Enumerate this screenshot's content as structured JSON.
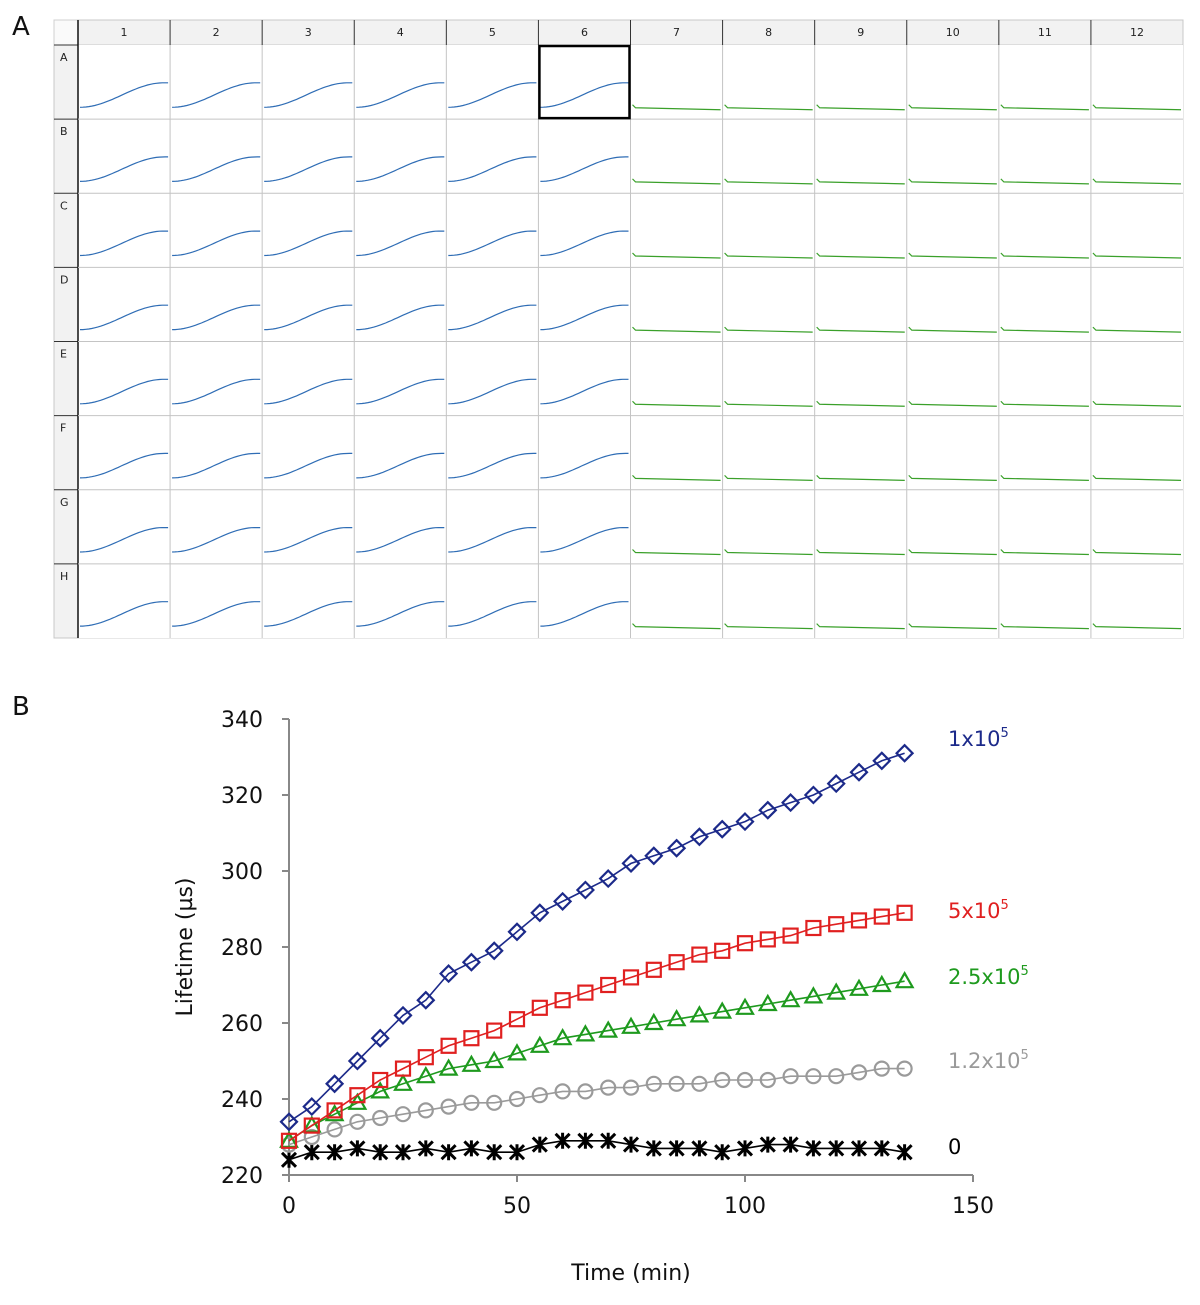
{
  "panel_a": {
    "label": "A",
    "columns": [
      "1",
      "2",
      "3",
      "4",
      "5",
      "6",
      "7",
      "8",
      "9",
      "10",
      "11",
      "12"
    ],
    "rows": [
      "A",
      "B",
      "C",
      "D",
      "E",
      "F",
      "G",
      "H"
    ],
    "selected_well": "A6",
    "curve_colors": {
      "rising": "#2f6db5",
      "flat": "#3aa02a"
    },
    "rising_columns": [
      1,
      2,
      3,
      4,
      5,
      6
    ],
    "flat_columns": [
      7,
      8,
      9,
      10,
      11,
      12
    ]
  },
  "panel_b": {
    "label": "B"
  },
  "chart_data": {
    "type": "scatter",
    "xlabel": "Time (min)",
    "ylabel": "Lifetime (µs)",
    "xlim": [
      0,
      150
    ],
    "ylim": [
      220,
      340
    ],
    "xticks": [
      0,
      50,
      100,
      150
    ],
    "yticks": [
      220,
      240,
      260,
      280,
      300,
      320,
      340
    ],
    "grid": false,
    "series": [
      {
        "name": "1x10",
        "exp": "5",
        "color": "#1c2a8a",
        "marker": "diamond",
        "x": [
          0,
          5,
          10,
          15,
          20,
          25,
          30,
          35,
          40,
          45,
          50,
          55,
          60,
          65,
          70,
          75,
          80,
          85,
          90,
          95,
          100,
          105,
          110,
          115,
          120,
          125,
          130,
          135
        ],
        "y": [
          234,
          238,
          244,
          250,
          256,
          262,
          266,
          273,
          276,
          279,
          284,
          289,
          292,
          295,
          298,
          302,
          304,
          306,
          309,
          311,
          313,
          316,
          318,
          320,
          323,
          326,
          329,
          331
        ]
      },
      {
        "name": "5x10",
        "exp": "5",
        "color": "#e02020",
        "marker": "square",
        "x": [
          0,
          5,
          10,
          15,
          20,
          25,
          30,
          35,
          40,
          45,
          50,
          55,
          60,
          65,
          70,
          75,
          80,
          85,
          90,
          95,
          100,
          105,
          110,
          115,
          120,
          125,
          130,
          135
        ],
        "y": [
          229,
          233,
          237,
          241,
          245,
          248,
          251,
          254,
          256,
          258,
          261,
          264,
          266,
          268,
          270,
          272,
          274,
          276,
          278,
          279,
          281,
          282,
          283,
          285,
          286,
          287,
          288,
          289
        ]
      },
      {
        "name": "2.5x10",
        "exp": "5",
        "color": "#1e9a1e",
        "marker": "triangle",
        "x": [
          0,
          5,
          10,
          15,
          20,
          25,
          30,
          35,
          40,
          45,
          50,
          55,
          60,
          65,
          70,
          75,
          80,
          85,
          90,
          95,
          100,
          105,
          110,
          115,
          120,
          125,
          130,
          135
        ],
        "y": [
          229,
          233,
          236,
          239,
          242,
          244,
          246,
          248,
          249,
          250,
          252,
          254,
          256,
          257,
          258,
          259,
          260,
          261,
          262,
          263,
          264,
          265,
          266,
          267,
          268,
          269,
          270,
          271
        ]
      },
      {
        "name": "1.2x10",
        "exp": "5",
        "color": "#9a9a9a",
        "marker": "circle",
        "x": [
          0,
          5,
          10,
          15,
          20,
          25,
          30,
          35,
          40,
          45,
          50,
          55,
          60,
          65,
          70,
          75,
          80,
          85,
          90,
          95,
          100,
          105,
          110,
          115,
          120,
          125,
          130,
          135
        ],
        "y": [
          228,
          230,
          232,
          234,
          235,
          236,
          237,
          238,
          239,
          239,
          240,
          241,
          242,
          242,
          243,
          243,
          244,
          244,
          244,
          245,
          245,
          245,
          246,
          246,
          246,
          247,
          248,
          248
        ]
      },
      {
        "name": "0",
        "exp": "",
        "color": "#000000",
        "marker": "star",
        "x": [
          0,
          5,
          10,
          15,
          20,
          25,
          30,
          35,
          40,
          45,
          50,
          55,
          60,
          65,
          70,
          75,
          80,
          85,
          90,
          95,
          100,
          105,
          110,
          115,
          120,
          125,
          130,
          135
        ],
        "y": [
          224,
          226,
          226,
          227,
          226,
          226,
          227,
          226,
          227,
          226,
          226,
          228,
          229,
          229,
          229,
          228,
          227,
          227,
          227,
          226,
          227,
          228,
          228,
          227,
          227,
          227,
          227,
          226
        ]
      }
    ]
  }
}
